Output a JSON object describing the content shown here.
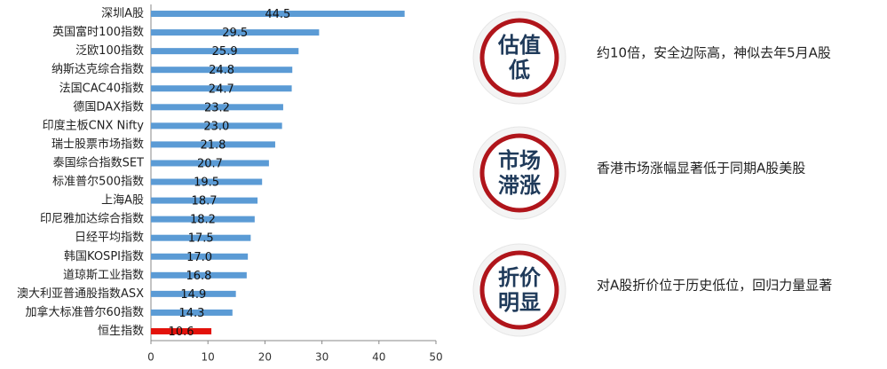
{
  "chart_data": {
    "type": "hbar",
    "categories": [
      "深圳A股",
      "英国富时100指数",
      "泛欧100指数",
      "纳斯达克综合指数",
      "法国CAC40指数",
      "德国DAX指数",
      "印度主板CNX Nifty",
      "瑞士股票市场指数",
      "泰国综合指数SET",
      "标准普尔500指数",
      "上海A股",
      "印尼雅加达综合指数",
      "日经平均指数",
      "韩国KOSPI指数",
      "道琼斯工业指数",
      "澳大利亚普通股指数ASX",
      "加拿大标准普尔60指数",
      "恒生指数"
    ],
    "values": [
      44.5,
      29.5,
      25.9,
      24.8,
      24.7,
      23.2,
      23.0,
      21.8,
      20.7,
      19.5,
      18.7,
      18.2,
      17.5,
      17.0,
      16.8,
      14.9,
      14.3,
      10.6
    ],
    "value_labels": [
      "44.5",
      "29.5",
      "25.9",
      "24.8",
      "24.7",
      "23.2",
      "23.0",
      "21.8",
      "20.7",
      "19.5",
      "18.7",
      "18.2",
      "17.5",
      "17.0",
      "16.8",
      "14.9",
      "14.3",
      "10.6"
    ],
    "colors": [
      "#5b9bd5",
      "#5b9bd5",
      "#5b9bd5",
      "#5b9bd5",
      "#5b9bd5",
      "#5b9bd5",
      "#5b9bd5",
      "#5b9bd5",
      "#5b9bd5",
      "#5b9bd5",
      "#5b9bd5",
      "#5b9bd5",
      "#5b9bd5",
      "#5b9bd5",
      "#5b9bd5",
      "#5b9bd5",
      "#5b9bd5",
      "#e3120b"
    ],
    "xlim": [
      0,
      50
    ],
    "xticks": [
      0,
      10,
      20,
      30,
      40,
      50
    ]
  },
  "annotations": [
    {
      "title_lines": [
        "估值",
        "低"
      ],
      "text": "约10倍，安全边际高，神似去年5月A股"
    },
    {
      "title_lines": [
        "市场",
        "滞涨"
      ],
      "text": "香港市场涨幅显著低于同期A股美股"
    },
    {
      "title_lines": [
        "折价",
        "明显"
      ],
      "text": "对A股折价位于历史低位，回归力量显著"
    }
  ]
}
